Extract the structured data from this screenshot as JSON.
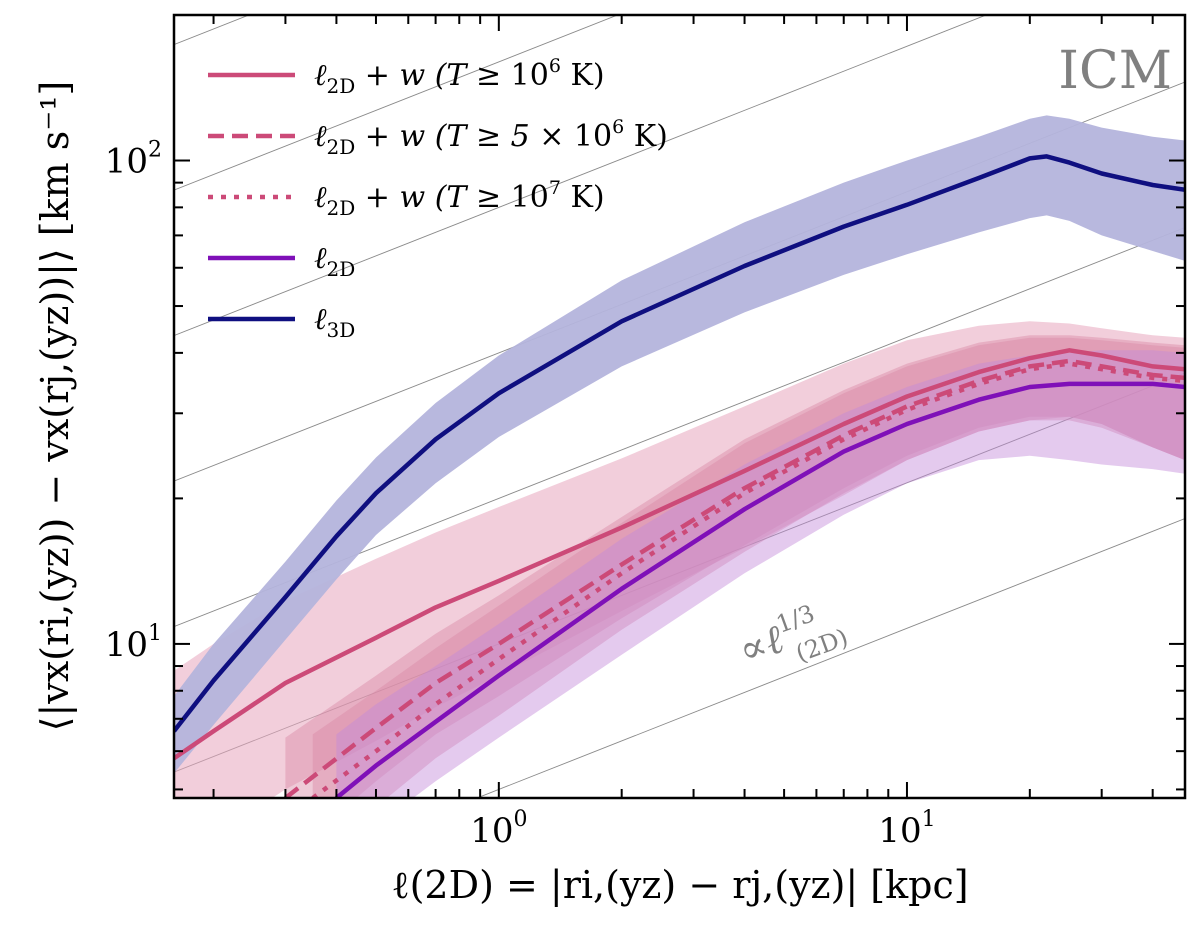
{
  "chart_data": {
    "type": "line",
    "xscale": "log",
    "yscale": "log",
    "xlim": [
      0.16,
      48
    ],
    "ylim": [
      4.8,
      200
    ],
    "xlabel": "ℓ(2D) = |ri,(yz) − rj,(yz)| [kpc]",
    "ylabel": "⟨|vx(ri,(yz)) − vx(rj,(yz))|⟩ [km s⁻¹]",
    "x_ticks": [
      {
        "value": 1,
        "label": "10",
        "exp": "0"
      },
      {
        "value": 10,
        "label": "10",
        "exp": "1"
      }
    ],
    "y_ticks": [
      {
        "value": 10,
        "label": "10",
        "exp": "1"
      },
      {
        "value": 100,
        "label": "10",
        "exp": "2"
      }
    ],
    "panel_label": "ICM",
    "annotation": {
      "text": "∝ℓ",
      "exp": "1/3",
      "sub": "(2D)"
    },
    "reference_slope": 0.3333,
    "reference_intercepts": [
      5,
      10,
      20,
      40,
      80,
      160,
      320
    ],
    "series": [
      {
        "name": "ℓ2D + w (T ≥ 10⁶ K)",
        "color": "#cc4a78",
        "band_color": "#e8a6bd",
        "dash": "solid",
        "x": [
          0.16,
          0.2,
          0.3,
          0.5,
          0.7,
          1,
          2,
          4,
          7,
          10,
          15,
          20,
          25,
          30,
          40,
          48
        ],
        "y": [
          5.8,
          6.6,
          8.3,
          10.3,
          11.9,
          13.5,
          17.4,
          22.8,
          28.5,
          32.5,
          36.5,
          39.0,
          40.5,
          39.5,
          37.5,
          37.0
        ],
        "lower": [
          3.6,
          4.0,
          5.0,
          6.3,
          7.4,
          8.6,
          11.7,
          15.8,
          20.3,
          24.0,
          27.5,
          29.0,
          29.5,
          28.5,
          25.5,
          24.0
        ],
        "upper": [
          8.8,
          10.0,
          12.3,
          15.0,
          17.0,
          19.2,
          24.2,
          31.0,
          38.0,
          42.5,
          45.5,
          46.5,
          46.0,
          45.0,
          43.5,
          43.0
        ]
      },
      {
        "name": "ℓ2D + w (T ≥ 5×10⁶ K)",
        "color": "#cc4a78",
        "band_color": "#d98aa7",
        "dash": "dashed",
        "x": [
          0.3,
          0.5,
          0.7,
          1,
          2,
          4,
          7,
          10,
          15,
          20,
          25,
          30,
          40,
          48
        ],
        "y": [
          4.8,
          6.7,
          8.3,
          10.0,
          14.6,
          21.0,
          27.0,
          31.0,
          35.0,
          37.5,
          38.5,
          37.5,
          36.0,
          35.5
        ],
        "lower": [
          3.6,
          5.2,
          6.5,
          7.8,
          11.3,
          16.0,
          21.0,
          24.5,
          28.0,
          29.5,
          29.5,
          28.5,
          25.5,
          24.0
        ],
        "upper": [
          6.4,
          8.6,
          10.5,
          12.6,
          18.3,
          26.5,
          33.5,
          38.0,
          42.0,
          43.5,
          43.5,
          43.0,
          42.0,
          41.5
        ]
      },
      {
        "name": "ℓ2D + w (T ≥ 10⁷ K)",
        "color": "#cc4a78",
        "band_color": "#d98aa7",
        "dash": "dotted",
        "x": [
          0.35,
          0.5,
          0.7,
          1,
          2,
          4,
          7,
          10,
          15,
          20,
          25,
          30,
          40,
          48
        ],
        "y": [
          4.8,
          6.0,
          7.5,
          9.3,
          14.0,
          20.5,
          26.5,
          30.5,
          34.5,
          37.0,
          38.0,
          37.0,
          35.5,
          35.0
        ],
        "lower": [
          3.6,
          4.6,
          5.8,
          7.1,
          10.7,
          15.5,
          20.5,
          24.0,
          27.5,
          29.0,
          29.0,
          28.0,
          25.5,
          24.0
        ],
        "upper": [
          6.5,
          8.0,
          9.8,
          12.0,
          17.8,
          26.0,
          33.0,
          37.5,
          41.5,
          43.0,
          43.0,
          42.5,
          41.5,
          41.0
        ]
      },
      {
        "name": "ℓ2D",
        "color": "#7f10b8",
        "band_color": "#c48ad9",
        "dash": "solid",
        "x": [
          0.4,
          0.5,
          0.7,
          1,
          2,
          4,
          7,
          10,
          15,
          20,
          25,
          30,
          40,
          48
        ],
        "y": [
          4.8,
          5.6,
          6.9,
          8.6,
          13.0,
          19.0,
          25.0,
          28.5,
          32.0,
          34.0,
          34.5,
          34.5,
          34.5,
          34.0
        ],
        "lower": [
          3.5,
          4.2,
          5.2,
          6.4,
          9.5,
          14.0,
          18.5,
          21.5,
          24.0,
          24.5,
          24.0,
          23.5,
          23.0,
          22.5
        ],
        "upper": [
          6.5,
          7.5,
          9.0,
          11.0,
          16.5,
          23.5,
          30.0,
          34.0,
          38.0,
          39.5,
          40.0,
          40.5,
          40.5,
          40.0
        ]
      },
      {
        "name": "ℓ3D",
        "color": "#0f0f80",
        "band_color": "#b4b4dc",
        "dash": "solid",
        "x": [
          0.16,
          0.2,
          0.3,
          0.4,
          0.5,
          0.7,
          1,
          2,
          4,
          7,
          10,
          15,
          20,
          22,
          25,
          30,
          40,
          48
        ],
        "y": [
          6.6,
          8.4,
          12.5,
          16.7,
          20.5,
          26.5,
          33.0,
          46.5,
          60.5,
          73.0,
          81.0,
          92.0,
          101.0,
          102.0,
          99.0,
          94.0,
          89.0,
          87.0
        ],
        "lower": [
          5.4,
          6.8,
          10.2,
          13.6,
          16.8,
          21.5,
          26.8,
          37.5,
          48.5,
          58.0,
          64.0,
          71.0,
          76.0,
          77.0,
          75.0,
          70.0,
          65.0,
          62.0
        ],
        "upper": [
          7.8,
          10.0,
          14.8,
          19.8,
          24.3,
          31.5,
          39.5,
          56.5,
          74.5,
          90.0,
          100.0,
          112.0,
          122.0,
          124.0,
          122.0,
          117.0,
          112.0,
          110.0
        ]
      }
    ]
  },
  "legend": {
    "items": [
      {
        "prefix": "ℓ",
        "sub": "2D",
        "mid": " + w (T ≥ ",
        "base": "10",
        "exp": "6",
        "suffix": " K)",
        "style": "solid"
      },
      {
        "prefix": "ℓ",
        "sub": "2D",
        "mid": " + w (T ≥ 5 × ",
        "base": "10",
        "exp": "6",
        "suffix": " K)",
        "style": "dashed"
      },
      {
        "prefix": "ℓ",
        "sub": "2D",
        "mid": " + w (T ≥ ",
        "base": "10",
        "exp": "7",
        "suffix": " K)",
        "style": "dotted"
      },
      {
        "prefix": "ℓ",
        "sub": "2D",
        "mid": "",
        "base": "",
        "exp": "",
        "suffix": "",
        "style": "solid"
      },
      {
        "prefix": "ℓ",
        "sub": "3D",
        "mid": "",
        "base": "",
        "exp": "",
        "suffix": "",
        "style": "solid"
      }
    ]
  }
}
